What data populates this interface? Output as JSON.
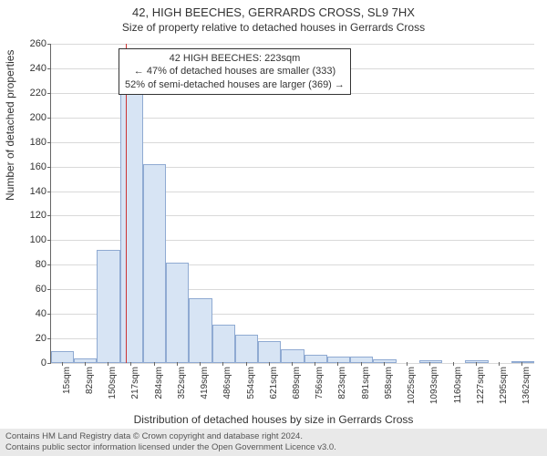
{
  "title": "42, HIGH BEECHES, GERRARDS CROSS, SL9 7HX",
  "subtitle": "Size of property relative to detached houses in Gerrards Cross",
  "yaxis_label": "Number of detached properties",
  "xaxis_label": "Distribution of detached houses by size in Gerrards Cross",
  "chart": {
    "type": "histogram",
    "ylim": [
      0,
      260
    ],
    "ytick_step": 20,
    "yticks": [
      0,
      20,
      40,
      60,
      80,
      100,
      120,
      140,
      160,
      180,
      200,
      220,
      240,
      260
    ],
    "xticks": [
      "15sqm",
      "82sqm",
      "150sqm",
      "217sqm",
      "284sqm",
      "352sqm",
      "419sqm",
      "486sqm",
      "554sqm",
      "621sqm",
      "689sqm",
      "756sqm",
      "823sqm",
      "891sqm",
      "958sqm",
      "1025sqm",
      "1093sqm",
      "1160sqm",
      "1227sqm",
      "1295sqm",
      "1362sqm"
    ],
    "bars": [
      10,
      4,
      92,
      226,
      162,
      82,
      53,
      31,
      23,
      18,
      11,
      7,
      5,
      5,
      3,
      0,
      2,
      0,
      2,
      0,
      1
    ],
    "bar_fill": "#d7e4f4",
    "bar_border": "#8faad2",
    "grid_color": "#d9d9d9",
    "axis_color": "#666666",
    "background": "#ffffff",
    "marker_value_x": 223,
    "xlim": [
      15,
      1362
    ],
    "marker_color": "#cc3333"
  },
  "annotation": {
    "line1": "42 HIGH BEECHES: 223sqm",
    "line2": "← 47% of detached houses are smaller (333)",
    "line3": "52% of semi-detached houses are larger (369) →"
  },
  "footer": {
    "line1": "Contains HM Land Registry data © Crown copyright and database right 2024.",
    "line2": "Contains public sector information licensed under the Open Government Licence v3.0."
  }
}
